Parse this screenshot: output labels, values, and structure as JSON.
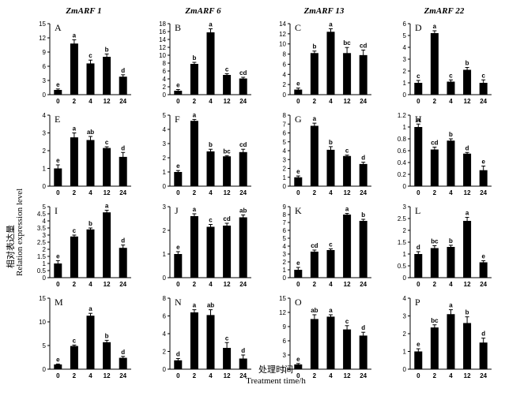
{
  "genes": [
    "ZmARF 1",
    "ZmARF 6",
    "ZmARF 13",
    "ZmARF 22"
  ],
  "ylabel_cn": "相对表达量",
  "ylabel_en": "Relation expression level",
  "xlabel_cn": "处理时间",
  "xlabel_en": "Treatment time/h",
  "chart_data": [
    {
      "type": "bar",
      "panel": "A",
      "gene": "ZmARF 1",
      "categories": [
        "0",
        "2",
        "4",
        "12",
        "24"
      ],
      "values": [
        1.0,
        10.8,
        6.6,
        8.0,
        3.8
      ],
      "errors": [
        0.2,
        0.8,
        0.7,
        0.6,
        0.4
      ],
      "letters": [
        "e",
        "a",
        "c",
        "b",
        "d"
      ],
      "ylim": [
        0,
        15
      ],
      "yticks": [
        0,
        3,
        6,
        9,
        12,
        15
      ]
    },
    {
      "type": "bar",
      "panel": "B",
      "gene": "ZmARF 6",
      "categories": [
        "0",
        "2",
        "4",
        "12",
        "24"
      ],
      "values": [
        1.0,
        7.8,
        15.8,
        5.0,
        4.1
      ],
      "errors": [
        0.3,
        0.4,
        0.9,
        0.3,
        0.3
      ],
      "letters": [
        "e",
        "b",
        "a",
        "c",
        "cd"
      ],
      "ylim": [
        0,
        18
      ],
      "yticks": [
        0,
        2,
        4,
        6,
        8,
        10,
        12,
        14,
        16,
        18
      ]
    },
    {
      "type": "bar",
      "panel": "C",
      "gene": "ZmARF 13",
      "categories": [
        "0",
        "2",
        "4",
        "12",
        "24"
      ],
      "values": [
        1.0,
        8.2,
        12.4,
        8.2,
        7.8
      ],
      "errors": [
        0.3,
        0.4,
        0.6,
        1.1,
        1.0
      ],
      "letters": [
        "e",
        "b",
        "a",
        "bc",
        "cd"
      ],
      "ylim": [
        0,
        14
      ],
      "yticks": [
        0,
        2,
        4,
        6,
        8,
        10,
        12,
        14
      ]
    },
    {
      "type": "bar",
      "panel": "D",
      "gene": "ZmARF 22",
      "categories": [
        "0",
        "2",
        "4",
        "12",
        "24"
      ],
      "values": [
        1.0,
        5.2,
        1.1,
        2.1,
        1.0
      ],
      "errors": [
        0.2,
        0.2,
        0.15,
        0.2,
        0.25
      ],
      "letters": [
        "c",
        "a",
        "c",
        "b",
        "c"
      ],
      "ylim": [
        0,
        6
      ],
      "yticks": [
        0,
        1,
        2,
        3,
        4,
        5,
        6
      ]
    },
    {
      "type": "bar",
      "panel": "E",
      "gene": "ZmARF 1",
      "categories": [
        "0",
        "2",
        "4",
        "12",
        "24"
      ],
      "values": [
        1.0,
        2.75,
        2.6,
        2.15,
        1.65
      ],
      "errors": [
        0.2,
        0.25,
        0.2,
        0.07,
        0.25
      ],
      "letters": [
        "e",
        "a",
        "ab",
        "c",
        "d"
      ],
      "ylim": [
        0,
        4
      ],
      "yticks": [
        0,
        1,
        2,
        3,
        4
      ]
    },
    {
      "type": "bar",
      "panel": "F",
      "gene": "ZmARF 6",
      "categories": [
        "0",
        "2",
        "4",
        "12",
        "24"
      ],
      "values": [
        1.0,
        4.6,
        2.45,
        2.1,
        2.4
      ],
      "errors": [
        0.1,
        0.1,
        0.15,
        0.05,
        0.2
      ],
      "letters": [
        "e",
        "a",
        "b",
        "bc",
        "cd"
      ],
      "ylim": [
        0,
        5
      ],
      "yticks": [
        0,
        1,
        2,
        3,
        4,
        5
      ]
    },
    {
      "type": "bar",
      "panel": "G",
      "gene": "ZmARF 13",
      "categories": [
        "0",
        "2",
        "4",
        "12",
        "24"
      ],
      "values": [
        1.0,
        6.8,
        4.1,
        3.4,
        2.5
      ],
      "errors": [
        0.15,
        0.3,
        0.35,
        0.1,
        0.2
      ],
      "letters": [
        "e",
        "a",
        "b",
        "c",
        "d"
      ],
      "ylim": [
        0,
        8
      ],
      "yticks": [
        0,
        1,
        2,
        3,
        4,
        5,
        6,
        7,
        8
      ]
    },
    {
      "type": "bar",
      "panel": "H",
      "gene": "ZmARF 22",
      "categories": [
        "0",
        "2",
        "4",
        "12",
        "24"
      ],
      "values": [
        1.0,
        0.62,
        0.77,
        0.55,
        0.27
      ],
      "errors": [
        0.05,
        0.04,
        0.03,
        0.02,
        0.07
      ],
      "letters": [
        "a",
        "cd",
        "b",
        "d",
        "e"
      ],
      "ylim": [
        0,
        1.2
      ],
      "yticks": [
        0,
        0.2,
        0.4,
        0.6,
        0.8,
        1,
        1.2
      ]
    },
    {
      "type": "bar",
      "panel": "I",
      "gene": "ZmARF 1",
      "categories": [
        "0",
        "2",
        "4",
        "12",
        "24"
      ],
      "values": [
        1.0,
        2.9,
        3.4,
        4.6,
        2.1
      ],
      "errors": [
        0.2,
        0.1,
        0.1,
        0.15,
        0.2
      ],
      "letters": [
        "e",
        "c",
        "b",
        "a",
        "d"
      ],
      "ylim": [
        0,
        5
      ],
      "yticks": [
        0,
        0.5,
        1,
        1.5,
        2,
        2.5,
        3,
        3.5,
        4,
        4.5,
        5
      ]
    },
    {
      "type": "bar",
      "panel": "J",
      "gene": "ZmARF 6",
      "categories": [
        "0",
        "2",
        "4",
        "12",
        "24"
      ],
      "values": [
        1.0,
        2.6,
        2.15,
        2.2,
        2.55
      ],
      "errors": [
        0.1,
        0.1,
        0.1,
        0.1,
        0.1
      ],
      "letters": [
        "e",
        "a",
        "c",
        "cd",
        "ab"
      ],
      "ylim": [
        0,
        3
      ],
      "yticks": [
        0,
        1,
        2,
        3
      ]
    },
    {
      "type": "bar",
      "panel": "K",
      "gene": "ZmARF 13",
      "categories": [
        "0",
        "2",
        "4",
        "12",
        "24"
      ],
      "values": [
        1.0,
        3.3,
        3.5,
        8.0,
        7.2
      ],
      "errors": [
        0.3,
        0.2,
        0.15,
        0.15,
        0.2
      ],
      "letters": [
        "e",
        "cd",
        "c",
        "a",
        "b"
      ],
      "ylim": [
        0,
        9
      ],
      "yticks": [
        0,
        1,
        2,
        3,
        4,
        5,
        6,
        7,
        8,
        9
      ]
    },
    {
      "type": "bar",
      "panel": "L",
      "gene": "ZmARF 22",
      "categories": [
        "0",
        "2",
        "4",
        "12",
        "24"
      ],
      "values": [
        1.0,
        1.25,
        1.3,
        2.4,
        0.65
      ],
      "errors": [
        0.1,
        0.1,
        0.07,
        0.15,
        0.07
      ],
      "letters": [
        "d",
        "bc",
        "b",
        "a",
        "e"
      ],
      "ylim": [
        0,
        3
      ],
      "yticks": [
        0,
        0.5,
        1,
        1.5,
        2,
        2.5,
        3
      ]
    },
    {
      "type": "bar",
      "panel": "M",
      "gene": "ZmARF 1",
      "categories": [
        "0",
        "2",
        "4",
        "12",
        "24"
      ],
      "values": [
        1.0,
        4.9,
        11.3,
        5.7,
        2.4
      ],
      "errors": [
        0.1,
        0.2,
        0.5,
        0.4,
        0.3
      ],
      "letters": [
        "e",
        "c",
        "a",
        "b",
        "d"
      ],
      "ylim": [
        0,
        15
      ],
      "yticks": [
        0,
        5,
        10,
        15
      ]
    },
    {
      "type": "bar",
      "panel": "N",
      "gene": "ZmARF 6",
      "categories": [
        "0",
        "2",
        "4",
        "12",
        "24"
      ],
      "values": [
        1.0,
        6.4,
        6.1,
        2.4,
        1.2
      ],
      "errors": [
        0.2,
        0.3,
        0.6,
        0.6,
        0.4
      ],
      "letters": [
        "d",
        "a",
        "ab",
        "c",
        "d"
      ],
      "ylim": [
        0,
        8
      ],
      "yticks": [
        0,
        2,
        4,
        6,
        8
      ]
    },
    {
      "type": "bar",
      "panel": "O",
      "gene": "ZmARF 13",
      "categories": [
        "0",
        "2",
        "4",
        "12",
        "24"
      ],
      "values": [
        1.0,
        10.6,
        11.1,
        8.4,
        7.1
      ],
      "errors": [
        0.2,
        0.9,
        0.4,
        0.8,
        0.7
      ],
      "letters": [
        "e",
        "ab",
        "a",
        "c",
        "d"
      ],
      "ylim": [
        0,
        15
      ],
      "yticks": [
        0,
        3,
        6,
        9,
        12,
        15
      ]
    },
    {
      "type": "bar",
      "panel": "P",
      "gene": "ZmARF 22",
      "categories": [
        "0",
        "2",
        "4",
        "12",
        "24"
      ],
      "values": [
        1.0,
        2.35,
        3.1,
        2.6,
        1.5
      ],
      "errors": [
        0.15,
        0.15,
        0.25,
        0.35,
        0.25
      ],
      "letters": [
        "e",
        "bc",
        "a",
        "b",
        "d"
      ],
      "ylim": [
        0,
        4
      ],
      "yticks": [
        0,
        1,
        2,
        3,
        4
      ]
    }
  ]
}
